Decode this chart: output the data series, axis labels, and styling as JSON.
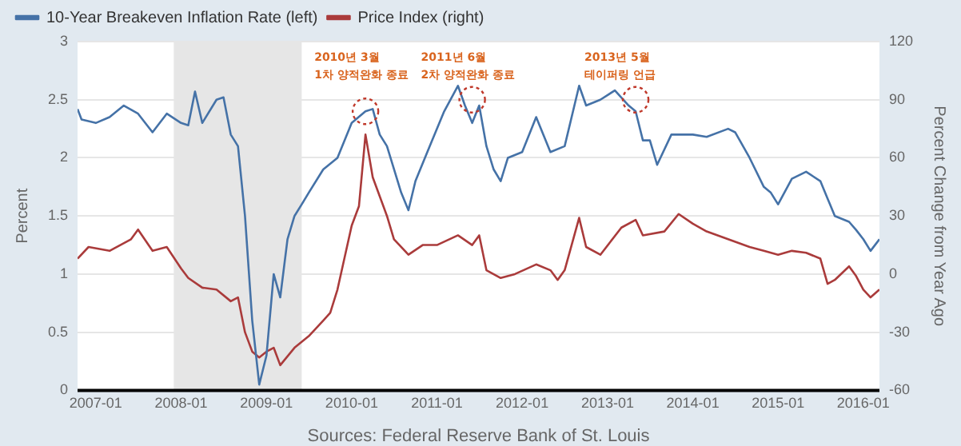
{
  "chart_data": {
    "type": "line",
    "ylabel": "Percent",
    "y2label": "Percent Change from Year Ago",
    "xlim": [
      "2006-10-15",
      "2016-03-10"
    ],
    "xticks": [
      "2007-01",
      "2008-01",
      "2009-01",
      "2010-01",
      "2011-01",
      "2012-01",
      "2013-01",
      "2014-01",
      "2015-01",
      "2016-01"
    ],
    "ylim": [
      0,
      3
    ],
    "yticks": [
      0,
      0.5,
      1,
      1.5,
      2,
      2.5,
      3
    ],
    "y2lim": [
      -60,
      120
    ],
    "y2ticks": [
      -60,
      -30,
      0,
      30,
      60,
      90,
      120
    ],
    "grid": "y",
    "legend": "top left",
    "marker": "none",
    "line_style": "solid",
    "bands": [
      {
        "axis": "x",
        "from": "2007-12",
        "to": "2009-06",
        "color": "#e6e6e6"
      }
    ],
    "annotations": [
      {
        "text": "2010년 3월\n1차 양적완화 종료",
        "x": "2010-03",
        "y": 2.4
      },
      {
        "text": "2011년 6월\n2차 양적완화 종료",
        "x": "2011-06",
        "y": 2.5
      },
      {
        "text": "2013년 5월\n테이퍼링 언급",
        "x": "2013-05",
        "y": 2.5
      },
      "Sources: Federal Reserve Bank of St. Louis"
    ],
    "series": [
      {
        "name": "10-Year Breakeven Inflation Rate (left)",
        "color": "#4572a7",
        "x": [
          "2006-10-15",
          "2006-11",
          "2007-01",
          "2007-03",
          "2007-05",
          "2007-07",
          "2007-09",
          "2007-11",
          "2008-01",
          "2008-02",
          "2008-03",
          "2008-04",
          "2008-06",
          "2008-07",
          "2008-08",
          "2008-09",
          "2008-10",
          "2008-11",
          "2008-12",
          "2009-01",
          "2009-02",
          "2009-03",
          "2009-04",
          "2009-05",
          "2009-06",
          "2009-07",
          "2009-09",
          "2009-11",
          "2010-01",
          "2010-03",
          "2010-04",
          "2010-05",
          "2010-06",
          "2010-08",
          "2010-09",
          "2010-10",
          "2010-12",
          "2011-02",
          "2011-04",
          "2011-05",
          "2011-06",
          "2011-07",
          "2011-08",
          "2011-09",
          "2011-10",
          "2011-11",
          "2012-01",
          "2012-03",
          "2012-05",
          "2012-07",
          "2012-09",
          "2012-10",
          "2012-12",
          "2013-02",
          "2013-04",
          "2013-05",
          "2013-06",
          "2013-07",
          "2013-08",
          "2013-10",
          "2014-01",
          "2014-03",
          "2014-06",
          "2014-07",
          "2014-09",
          "2014-11",
          "2014-12",
          "2015-01",
          "2015-03",
          "2015-05",
          "2015-07",
          "2015-08",
          "2015-09",
          "2015-11",
          "2015-12",
          "2016-01",
          "2016-02",
          "2016-03-10"
        ],
        "values": [
          2.42,
          2.33,
          2.3,
          2.35,
          2.45,
          2.38,
          2.22,
          2.38,
          2.3,
          2.28,
          2.57,
          2.3,
          2.5,
          2.52,
          2.2,
          2.1,
          1.5,
          0.6,
          0.05,
          0.3,
          1.0,
          0.8,
          1.3,
          1.5,
          1.6,
          1.7,
          1.9,
          2.0,
          2.3,
          2.4,
          2.42,
          2.2,
          2.1,
          1.7,
          1.55,
          1.8,
          2.1,
          2.4,
          2.62,
          2.45,
          2.3,
          2.45,
          2.1,
          1.9,
          1.8,
          2.0,
          2.05,
          2.35,
          2.05,
          2.1,
          2.62,
          2.45,
          2.5,
          2.58,
          2.45,
          2.4,
          2.15,
          2.15,
          1.94,
          2.2,
          2.2,
          2.18,
          2.25,
          2.22,
          2.0,
          1.75,
          1.7,
          1.6,
          1.82,
          1.88,
          1.8,
          1.65,
          1.5,
          1.45,
          1.38,
          1.3,
          1.2,
          1.3
        ]
      },
      {
        "name": "Price Index (right)",
        "color": "#aa3b3b",
        "axis": "y2",
        "x": [
          "2006-10-15",
          "2006-12",
          "2007-03",
          "2007-06",
          "2007-07",
          "2007-09",
          "2007-11",
          "2008-01",
          "2008-02",
          "2008-04",
          "2008-06",
          "2008-08",
          "2008-09",
          "2008-10",
          "2008-11",
          "2008-12",
          "2009-01",
          "2009-02",
          "2009-03",
          "2009-05",
          "2009-07",
          "2009-09",
          "2009-10",
          "2009-11",
          "2010-01",
          "2010-02",
          "2010-03",
          "2010-04",
          "2010-06",
          "2010-07",
          "2010-09",
          "2010-11",
          "2011-01",
          "2011-04",
          "2011-06",
          "2011-07",
          "2011-08",
          "2011-10",
          "2011-12",
          "2012-03",
          "2012-05",
          "2012-06",
          "2012-07",
          "2012-09",
          "2012-10",
          "2012-12",
          "2013-03",
          "2013-05",
          "2013-06",
          "2013-09",
          "2013-11",
          "2014-01",
          "2014-03",
          "2014-06",
          "2014-09",
          "2014-11",
          "2015-01",
          "2015-03",
          "2015-05",
          "2015-07",
          "2015-08",
          "2015-09",
          "2015-11",
          "2015-12",
          "2016-01",
          "2016-02",
          "2016-03-10"
        ],
        "values": [
          8,
          14,
          12,
          18,
          23,
          12,
          14,
          3,
          -2,
          -7,
          -8,
          -14,
          -12,
          -30,
          -40,
          -43,
          -40,
          -38,
          -47,
          -38,
          -32,
          -24,
          -20,
          -8,
          25,
          35,
          72,
          50,
          30,
          18,
          10,
          15,
          15,
          20,
          15,
          20,
          2,
          -2,
          0,
          5,
          2,
          -3,
          2,
          29,
          14,
          10,
          24,
          28,
          20,
          22,
          31,
          26,
          22,
          18,
          14,
          12,
          10,
          12,
          11,
          8,
          -5,
          -3,
          4,
          -1,
          -8,
          -12,
          -8
        ]
      }
    ]
  }
}
